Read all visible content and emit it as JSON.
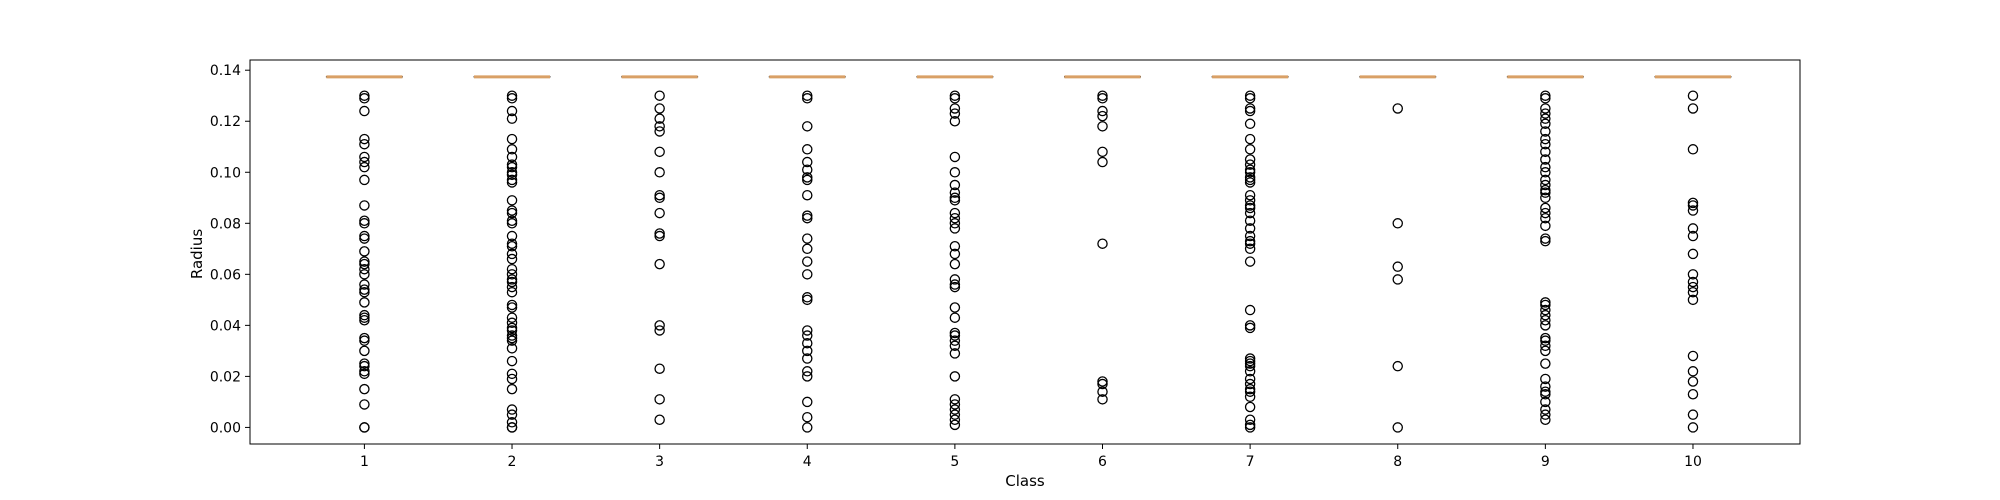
{
  "chart_data": {
    "type": "box",
    "xlabel": "Class",
    "ylabel": "Radius",
    "ylim": [
      -0.0065,
      0.144
    ],
    "yticks": [
      0.0,
      0.02,
      0.04,
      0.06,
      0.08,
      0.1,
      0.12,
      0.14
    ],
    "ytick_labels": [
      "0.00",
      "0.02",
      "0.04",
      "0.06",
      "0.08",
      "0.10",
      "0.12",
      "0.14"
    ],
    "categories": [
      "1",
      "2",
      "3",
      "4",
      "5",
      "6",
      "7",
      "8",
      "9",
      "10"
    ],
    "grid": false,
    "colors": {
      "median": "#d9a066",
      "box": "#000000",
      "flier": "#000000"
    },
    "boxes": [
      {
        "category": "1",
        "q1": 0.1374,
        "median": 0.1374,
        "q3": 0.1374,
        "fliers": [
          0.13,
          0.129,
          0.124,
          0.113,
          0.111,
          0.106,
          0.104,
          0.102,
          0.097,
          0.087,
          0.081,
          0.08,
          0.075,
          0.074,
          0.069,
          0.065,
          0.064,
          0.062,
          0.06,
          0.056,
          0.054,
          0.053,
          0.049,
          0.044,
          0.043,
          0.042,
          0.035,
          0.034,
          0.03,
          0.025,
          0.024,
          0.022,
          0.021,
          0.015,
          0.009,
          0.0,
          0.0
        ]
      },
      {
        "category": "2",
        "q1": 0.1374,
        "median": 0.1374,
        "q3": 0.1374,
        "fliers": [
          0.13,
          0.129,
          0.124,
          0.121,
          0.113,
          0.109,
          0.106,
          0.103,
          0.102,
          0.1,
          0.099,
          0.097,
          0.096,
          0.089,
          0.085,
          0.084,
          0.081,
          0.08,
          0.075,
          0.072,
          0.071,
          0.068,
          0.066,
          0.062,
          0.06,
          0.058,
          0.057,
          0.055,
          0.053,
          0.048,
          0.047,
          0.043,
          0.041,
          0.039,
          0.038,
          0.036,
          0.035,
          0.034,
          0.031,
          0.026,
          0.021,
          0.019,
          0.015,
          0.007,
          0.005,
          0.002,
          0.0,
          0.0
        ]
      },
      {
        "category": "3",
        "q1": 0.1374,
        "median": 0.1374,
        "q3": 0.1374,
        "fliers": [
          0.13,
          0.125,
          0.121,
          0.118,
          0.116,
          0.108,
          0.1,
          0.091,
          0.09,
          0.084,
          0.076,
          0.075,
          0.064,
          0.04,
          0.038,
          0.023,
          0.011,
          0.003
        ]
      },
      {
        "category": "4",
        "q1": 0.1374,
        "median": 0.1374,
        "q3": 0.1374,
        "fliers": [
          0.13,
          0.129,
          0.118,
          0.109,
          0.104,
          0.101,
          0.098,
          0.097,
          0.091,
          0.083,
          0.082,
          0.074,
          0.07,
          0.065,
          0.06,
          0.051,
          0.05,
          0.038,
          0.036,
          0.033,
          0.03,
          0.027,
          0.022,
          0.02,
          0.01,
          0.004,
          0.0
        ]
      },
      {
        "category": "5",
        "q1": 0.1374,
        "median": 0.1374,
        "q3": 0.1374,
        "fliers": [
          0.13,
          0.129,
          0.125,
          0.123,
          0.12,
          0.106,
          0.1,
          0.095,
          0.092,
          0.09,
          0.089,
          0.084,
          0.082,
          0.08,
          0.078,
          0.071,
          0.068,
          0.064,
          0.058,
          0.056,
          0.055,
          0.047,
          0.043,
          0.037,
          0.036,
          0.034,
          0.032,
          0.029,
          0.02,
          0.011,
          0.009,
          0.007,
          0.005,
          0.003,
          0.001
        ]
      },
      {
        "category": "6",
        "q1": 0.1374,
        "median": 0.1374,
        "q3": 0.1374,
        "fliers": [
          0.13,
          0.129,
          0.124,
          0.122,
          0.118,
          0.108,
          0.104,
          0.072,
          0.018,
          0.017,
          0.014,
          0.011
        ]
      },
      {
        "category": "7",
        "q1": 0.1374,
        "median": 0.1374,
        "q3": 0.1374,
        "fliers": [
          0.13,
          0.129,
          0.125,
          0.124,
          0.119,
          0.113,
          0.109,
          0.105,
          0.103,
          0.101,
          0.1,
          0.098,
          0.097,
          0.096,
          0.091,
          0.089,
          0.087,
          0.086,
          0.084,
          0.081,
          0.078,
          0.075,
          0.073,
          0.072,
          0.07,
          0.065,
          0.046,
          0.04,
          0.039,
          0.027,
          0.026,
          0.025,
          0.024,
          0.022,
          0.019,
          0.017,
          0.015,
          0.014,
          0.012,
          0.008,
          0.003,
          0.001,
          0.0
        ]
      },
      {
        "category": "8",
        "q1": 0.1374,
        "median": 0.1374,
        "q3": 0.1374,
        "fliers": [
          0.125,
          0.08,
          0.063,
          0.058,
          0.024,
          0.0
        ]
      },
      {
        "category": "9",
        "q1": 0.1374,
        "median": 0.1374,
        "q3": 0.1374,
        "fliers": [
          0.13,
          0.129,
          0.125,
          0.123,
          0.121,
          0.119,
          0.116,
          0.113,
          0.111,
          0.108,
          0.105,
          0.102,
          0.1,
          0.097,
          0.095,
          0.093,
          0.092,
          0.09,
          0.086,
          0.084,
          0.082,
          0.079,
          0.074,
          0.073,
          0.049,
          0.048,
          0.046,
          0.044,
          0.042,
          0.04,
          0.035,
          0.034,
          0.032,
          0.03,
          0.025,
          0.019,
          0.016,
          0.014,
          0.013,
          0.01,
          0.007,
          0.005,
          0.003
        ]
      },
      {
        "category": "10",
        "q1": 0.1374,
        "median": 0.1374,
        "q3": 0.1374,
        "fliers": [
          0.13,
          0.125,
          0.109,
          0.088,
          0.087,
          0.085,
          0.078,
          0.075,
          0.068,
          0.06,
          0.057,
          0.055,
          0.053,
          0.05,
          0.028,
          0.022,
          0.018,
          0.013,
          0.005,
          0.0
        ]
      }
    ]
  }
}
